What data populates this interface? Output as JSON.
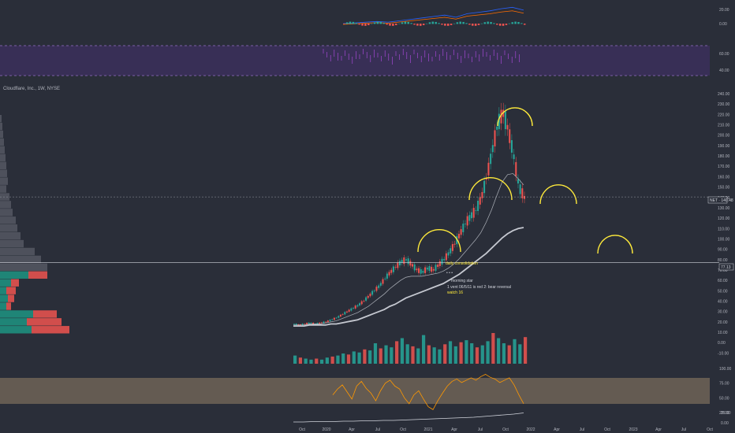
{
  "header": {
    "symbol_label": "Cloudflare, Inc., 1W, NYSE",
    "price_tag": "NET · 140.48",
    "line_tag": "77.13"
  },
  "annotations": {
    "note_daily": "daily consolidation",
    "note_morning": "morning star",
    "note_dots": "• • •",
    "note_bear": "1 vent 06/5/11 is red 2: bear reversal",
    "note_watch": "watch 16"
  },
  "colors": {
    "background": "#2a2e39",
    "up": "#26a69a",
    "down": "#ef5350",
    "arc": "#ffeb3b",
    "sma_white": "#d1d4dc",
    "rsi_orange": "#ff9800",
    "rsi_band": "#7a6a5a",
    "macd_band": "#4a3a6a"
  },
  "chart_data": [
    {
      "type": "line",
      "title": "MACD",
      "y_ticks": [
        "20.00",
        "0.00"
      ],
      "series": [
        {
          "values": [
            0,
            1,
            2,
            3,
            2,
            4,
            6,
            8,
            10,
            12,
            9,
            14,
            16,
            18,
            21,
            23,
            19
          ]
        }
      ]
    },
    {
      "type": "area",
      "title": "Oscillator band",
      "y_ticks": [
        "60.00",
        "40.00"
      ],
      "ylim": [
        33,
        68
      ]
    },
    {
      "type": "line",
      "title": "Cloudflare, Inc., 1W, NYSE",
      "ylim": [
        -15,
        240
      ],
      "y_ticks": [
        "240.00",
        "230.00",
        "220.00",
        "210.00",
        "200.00",
        "190.00",
        "180.00",
        "170.00",
        "160.00",
        "150.00",
        "140.00",
        "130.00",
        "120.00",
        "110.00",
        "100.00",
        "90.00",
        "80.00",
        "70.00",
        "60.00",
        "50.00",
        "40.00",
        "30.00",
        "20.00",
        "10.00",
        "0.00",
        "-10.00"
      ],
      "x_ticks": [
        "Oct",
        "2020",
        "Apr",
        "Jul",
        "Oct",
        "2021",
        "Apr",
        "Jul",
        "Oct",
        "2022",
        "Apr",
        "Jul",
        "Oct",
        "2023",
        "Apr",
        "Jul",
        "Oct"
      ],
      "series": [
        {
          "values": [
            18,
            17,
            18,
            19,
            18,
            19,
            20,
            22,
            24,
            27,
            30,
            33,
            36,
            40,
            45,
            50,
            55,
            62,
            68,
            73,
            78,
            80,
            75,
            70,
            68,
            72,
            70,
            75,
            80,
            87,
            95,
            105,
            115,
            122,
            128,
            140,
            160,
            185,
            210,
            222,
            205,
            180,
            150,
            140
          ]
        },
        {
          "values": [
            17,
            17,
            17,
            18,
            18,
            18,
            19,
            20,
            21,
            23,
            25,
            27,
            29,
            32,
            35,
            39,
            43,
            47,
            52,
            56,
            60,
            63,
            64,
            64,
            64,
            65,
            66,
            67,
            69,
            72,
            76,
            81,
            87,
            93,
            99,
            106,
            116,
            128,
            142,
            155,
            162,
            163,
            158,
            152
          ]
        },
        {
          "values": [
            16,
            16,
            16,
            17,
            17,
            17,
            17,
            18,
            18,
            19,
            20,
            21,
            22,
            24,
            26,
            28,
            30,
            32,
            35,
            37,
            40,
            43,
            45,
            47,
            49,
            51,
            53,
            55,
            57,
            60,
            63,
            66,
            70,
            74,
            78,
            82,
            86,
            91,
            96,
            101,
            105,
            108,
            110,
            111
          ]
        }
      ],
      "horizontal_lines": [
        140.48,
        77.13
      ],
      "arcs": [
        "top1",
        "top2",
        "top3",
        "proj1",
        "proj2"
      ]
    },
    {
      "type": "bar",
      "title": "Volume",
      "values": [
        8,
        6,
        5,
        4,
        5,
        4,
        6,
        7,
        8,
        10,
        9,
        12,
        11,
        14,
        13,
        20,
        15,
        18,
        16,
        22,
        25,
        19,
        17,
        15,
        28,
        18,
        16,
        14,
        19,
        22,
        17,
        21,
        23,
        20,
        16,
        18,
        22,
        30,
        25,
        20,
        18,
        24,
        19,
        26
      ]
    },
    {
      "type": "line",
      "title": "RSI",
      "y_ticks": [
        "100.00",
        "75.00",
        "50.00",
        "25.00"
      ],
      "ylim": [
        25,
        100
      ],
      "series": [
        {
          "values": [
            55,
            65,
            72,
            60,
            48,
            70,
            78,
            66,
            58,
            45,
            62,
            75,
            80,
            70,
            65,
            50,
            40,
            55,
            62,
            48,
            35,
            30,
            45,
            58,
            70,
            78,
            82,
            76,
            80,
            84,
            80,
            86,
            90,
            85,
            82,
            76,
            80,
            84,
            72,
            55,
            40
          ]
        }
      ]
    },
    {
      "type": "line",
      "title": "Bottom indicator",
      "y_ticks": [
        "25.00",
        "0.00"
      ],
      "series": [
        {
          "values": [
            2,
            2,
            3,
            3,
            3,
            4,
            4,
            5,
            5,
            6,
            6,
            7,
            8,
            9,
            10,
            11,
            12,
            13,
            14,
            16,
            18,
            20,
            22,
            25
          ]
        }
      ]
    }
  ],
  "volume_profile": [
    {
      "up": 2,
      "down": 0
    },
    {
      "up": 3,
      "down": 0
    },
    {
      "up": 4,
      "down": 0
    },
    {
      "up": 5,
      "down": 0
    },
    {
      "up": 6,
      "down": 0
    },
    {
      "up": 7,
      "down": 0
    },
    {
      "up": 8,
      "down": 0
    },
    {
      "up": 9,
      "down": 0
    },
    {
      "up": 10,
      "down": 0
    },
    {
      "up": 8,
      "down": 0
    },
    {
      "up": 12,
      "down": 0
    },
    {
      "up": 14,
      "down": 0
    },
    {
      "up": 16,
      "down": 0
    },
    {
      "up": 20,
      "down": 0
    },
    {
      "up": 22,
      "down": 0
    },
    {
      "up": 26,
      "down": 0
    },
    {
      "up": 30,
      "down": 0
    },
    {
      "up": 44,
      "down": 0
    },
    {
      "up": 52,
      "down": 0
    },
    {
      "up": 60,
      "down": 0
    },
    {
      "up": 36,
      "down": 24
    },
    {
      "up": 14,
      "down": 10
    },
    {
      "up": 8,
      "down": 12
    },
    {
      "up": 10,
      "down": 8
    },
    {
      "up": 8,
      "down": 6
    },
    {
      "up": 42,
      "down": 30
    },
    {
      "up": 34,
      "down": 44
    },
    {
      "up": 40,
      "down": 48
    }
  ]
}
